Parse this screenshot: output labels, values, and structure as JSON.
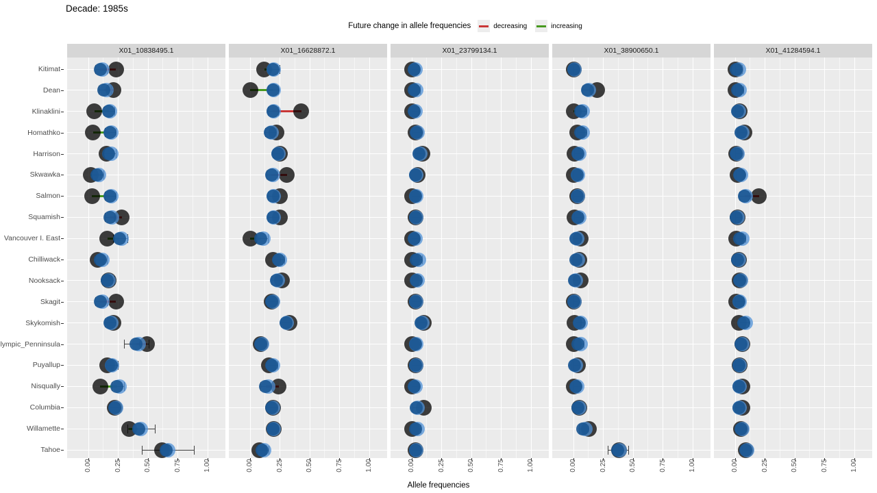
{
  "title": "Decade: 1985s",
  "chart_data": {
    "type": "scatter",
    "title": "Decade: 1985s",
    "xlabel": "Allele frequencies",
    "x_tick_labels": [
      "0.00",
      "0.25",
      "0.50",
      "0.75",
      "1.00"
    ],
    "x_tick_values": [
      0,
      0.25,
      0.5,
      0.75,
      1
    ],
    "x_minor_values": [
      0.125,
      0.375,
      0.625,
      0.875
    ],
    "xlim": [
      -0.18,
      1.15
    ],
    "legend": {
      "title": "Future change in allele frequencies",
      "entries": [
        {
          "label": "decreasing",
          "color": "#c93636",
          "code": "d"
        },
        {
          "label": "increasing",
          "color": "#47991f",
          "code": "i"
        }
      ]
    },
    "style": {
      "panel_bg": "#ebebeb",
      "strip_bg": "#d6d6d6",
      "grid": "#ffffff",
      "dark_point": "rgba(0,0,0,0.75)",
      "blue_dark_point": "rgba(25,85,145,0.9)",
      "blue_light_point": "rgba(80,145,215,0.75)",
      "errbar": "#3f3f3f"
    },
    "populations": [
      "Kitimat",
      "Dean",
      "Klinaklini",
      "Homathko",
      "Harrison",
      "Skwawka",
      "Salmon",
      "Squamish",
      "Vancouver I. East",
      "Chilliwack",
      "Nooksack",
      "Skagit",
      "Skykomish",
      "Olympic_Penninsula",
      "Puyallup",
      "Nisqually",
      "Columbia",
      "Willamette",
      "Tahoe"
    ],
    "row_format": [
      "current_dark",
      "future_blue_dark",
      "future_blue_light",
      "err_lo",
      "err_hi",
      "change (d=decreasing, i=increasing, null=none)"
    ],
    "facets": [
      {
        "label": "X01_10838495.1",
        "rows": [
          [
            0.23,
            0.1,
            0.12,
            0.06,
            0.16,
            "d"
          ],
          [
            0.21,
            0.13,
            0.15,
            0.09,
            0.19,
            "d"
          ],
          [
            0.05,
            0.17,
            0.18,
            0.13,
            0.22,
            "i"
          ],
          [
            0.04,
            0.18,
            0.19,
            0.14,
            0.23,
            "i"
          ],
          [
            0.15,
            0.17,
            0.19,
            0.13,
            0.23,
            null
          ],
          [
            0.02,
            0.07,
            0.09,
            0.03,
            0.13,
            "i"
          ],
          [
            0.03,
            0.18,
            0.19,
            0.14,
            0.23,
            "i"
          ],
          [
            0.28,
            0.18,
            0.2,
            0.14,
            0.24,
            "d"
          ],
          [
            0.16,
            0.26,
            0.28,
            0.21,
            0.33,
            "i"
          ],
          [
            0.08,
            0.1,
            0.12,
            0.06,
            0.16,
            null
          ],
          [
            0.17,
            0.16,
            0.17,
            0.12,
            0.22,
            null
          ],
          [
            0.23,
            0.1,
            0.12,
            0.06,
            0.16,
            "d"
          ],
          [
            0.21,
            0.18,
            0.19,
            0.14,
            0.23,
            null
          ],
          [
            0.49,
            0.4,
            0.42,
            0.3,
            0.51,
            "d"
          ],
          [
            0.16,
            0.19,
            0.2,
            0.15,
            0.25,
            null
          ],
          [
            0.1,
            0.24,
            0.26,
            0.2,
            0.3,
            "i"
          ],
          [
            0.22,
            0.22,
            0.23,
            0.18,
            0.27,
            null
          ],
          [
            0.34,
            0.42,
            0.44,
            0.33,
            0.56,
            "i"
          ],
          [
            0.62,
            0.65,
            0.67,
            0.45,
            0.89,
            null
          ]
        ]
      },
      {
        "label": "X01_16628872.1",
        "rows": [
          [
            0.12,
            0.19,
            0.2,
            0.15,
            0.25,
            "i"
          ],
          [
            0.0,
            0.19,
            0.2,
            0.15,
            0.24,
            "i"
          ],
          [
            0.43,
            0.19,
            0.2,
            0.15,
            0.24,
            "d"
          ],
          [
            0.22,
            0.17,
            0.18,
            0.13,
            0.22,
            null
          ],
          [
            0.25,
            0.23,
            0.24,
            0.19,
            0.28,
            null
          ],
          [
            0.31,
            0.18,
            0.19,
            0.14,
            0.23,
            "d"
          ],
          [
            0.25,
            0.19,
            0.2,
            0.15,
            0.24,
            null
          ],
          [
            0.25,
            0.19,
            0.2,
            0.15,
            0.24,
            null
          ],
          [
            0.0,
            0.09,
            0.11,
            0.05,
            0.15,
            "i"
          ],
          [
            0.19,
            0.24,
            0.25,
            0.2,
            0.29,
            null
          ],
          [
            0.27,
            0.22,
            0.23,
            0.18,
            0.27,
            null
          ],
          [
            0.18,
            0.18,
            0.19,
            0.14,
            0.23,
            null
          ],
          [
            0.33,
            0.3,
            0.31,
            0.26,
            0.35,
            null
          ],
          [
            0.09,
            0.09,
            0.1,
            0.05,
            0.14,
            null
          ],
          [
            0.16,
            0.18,
            0.19,
            0.14,
            0.23,
            null
          ],
          [
            0.24,
            0.13,
            0.15,
            0.09,
            0.19,
            "d"
          ],
          [
            0.19,
            0.18,
            0.19,
            0.14,
            0.23,
            null
          ],
          [
            0.2,
            0.19,
            0.2,
            0.15,
            0.24,
            null
          ],
          [
            0.08,
            0.1,
            0.12,
            0.06,
            0.16,
            null
          ]
        ]
      },
      {
        "label": "X01_23799134.1",
        "rows": [
          [
            0.0,
            0.02,
            0.03,
            0.0,
            0.06,
            null
          ],
          [
            0.0,
            0.02,
            0.04,
            0.0,
            0.07,
            null
          ],
          [
            0.0,
            0.02,
            0.03,
            0.0,
            0.06,
            null
          ],
          [
            0.03,
            0.04,
            0.05,
            0.01,
            0.08,
            null
          ],
          [
            0.09,
            0.06,
            0.07,
            0.03,
            0.1,
            null
          ],
          [
            0.05,
            0.03,
            0.04,
            0.0,
            0.07,
            null
          ],
          [
            0.0,
            0.03,
            0.04,
            0.0,
            0.07,
            null
          ],
          [
            0.03,
            0.03,
            0.04,
            0.0,
            0.07,
            null
          ],
          [
            0.0,
            0.02,
            0.03,
            0.0,
            0.06,
            null
          ],
          [
            0.0,
            0.04,
            0.06,
            0.01,
            0.09,
            null
          ],
          [
            0.0,
            0.04,
            0.05,
            0.01,
            0.08,
            null
          ],
          [
            0.03,
            0.03,
            0.04,
            0.0,
            0.07,
            null
          ],
          [
            0.1,
            0.08,
            0.09,
            0.05,
            0.12,
            null
          ],
          [
            0.0,
            0.03,
            0.04,
            0.0,
            0.07,
            null
          ],
          [
            0.03,
            0.03,
            0.04,
            0.0,
            0.07,
            null
          ],
          [
            0.0,
            0.02,
            0.03,
            0.0,
            0.06,
            null
          ],
          [
            0.1,
            0.04,
            0.05,
            0.01,
            0.08,
            null
          ],
          [
            0.0,
            0.03,
            0.05,
            0.0,
            0.08,
            null
          ],
          [
            0.03,
            0.03,
            0.04,
            0.0,
            0.07,
            null
          ]
        ]
      },
      {
        "label": "X01_38900650.1",
        "rows": [
          [
            0.0,
            0.0,
            0.01,
            0.0,
            0.04,
            null
          ],
          [
            0.2,
            0.12,
            0.13,
            0.08,
            0.17,
            null
          ],
          [
            0.0,
            0.06,
            0.08,
            0.03,
            0.11,
            "i"
          ],
          [
            0.03,
            0.06,
            0.08,
            0.03,
            0.11,
            null
          ],
          [
            0.01,
            0.04,
            0.05,
            0.01,
            0.08,
            null
          ],
          [
            0.0,
            0.03,
            0.04,
            0.0,
            0.07,
            null
          ],
          [
            0.03,
            0.03,
            0.04,
            0.0,
            0.07,
            null
          ],
          [
            0.01,
            0.04,
            0.05,
            0.01,
            0.08,
            null
          ],
          [
            0.06,
            0.02,
            0.03,
            0.0,
            0.06,
            null
          ],
          [
            0.05,
            0.02,
            0.04,
            0.0,
            0.07,
            null
          ],
          [
            0.06,
            0.01,
            0.02,
            0.0,
            0.05,
            null
          ],
          [
            0.0,
            0.0,
            0.01,
            0.0,
            0.04,
            null
          ],
          [
            0.01,
            0.05,
            0.06,
            0.02,
            0.09,
            null
          ],
          [
            0.0,
            0.04,
            0.06,
            0.01,
            0.09,
            null
          ],
          [
            0.04,
            0.01,
            0.02,
            0.0,
            0.05,
            null
          ],
          [
            0.0,
            0.02,
            0.03,
            0.0,
            0.06,
            null
          ],
          [
            0.05,
            0.04,
            0.05,
            0.01,
            0.08,
            null
          ],
          [
            0.13,
            0.08,
            0.1,
            0.05,
            0.13,
            null
          ],
          [
            0.38,
            0.37,
            0.39,
            0.29,
            0.46,
            null
          ]
        ]
      },
      {
        "label": "X01_41284594.1",
        "rows": [
          [
            0.0,
            0.01,
            0.03,
            0.0,
            0.06,
            null
          ],
          [
            0.0,
            0.02,
            0.04,
            0.0,
            0.07,
            null
          ],
          [
            0.04,
            0.02,
            0.03,
            0.0,
            0.06,
            null
          ],
          [
            0.08,
            0.05,
            0.06,
            0.02,
            0.09,
            null
          ],
          [
            0.01,
            0.01,
            0.02,
            0.0,
            0.05,
            null
          ],
          [
            0.02,
            0.04,
            0.05,
            0.01,
            0.08,
            null
          ],
          [
            0.2,
            0.08,
            0.09,
            0.04,
            0.13,
            "d"
          ],
          [
            0.02,
            0.01,
            0.02,
            0.0,
            0.05,
            null
          ],
          [
            0.01,
            0.04,
            0.06,
            0.01,
            0.09,
            null
          ],
          [
            0.03,
            0.02,
            0.03,
            0.0,
            0.06,
            null
          ],
          [
            0.04,
            0.04,
            0.05,
            0.01,
            0.08,
            null
          ],
          [
            0.01,
            0.03,
            0.04,
            0.0,
            0.07,
            null
          ],
          [
            0.03,
            0.07,
            0.09,
            0.04,
            0.12,
            null
          ],
          [
            0.06,
            0.05,
            0.06,
            0.02,
            0.09,
            null
          ],
          [
            0.04,
            0.03,
            0.04,
            0.0,
            0.07,
            null
          ],
          [
            0.06,
            0.03,
            0.04,
            0.0,
            0.07,
            null
          ],
          [
            0.06,
            0.03,
            0.04,
            0.0,
            0.07,
            null
          ],
          [
            0.05,
            0.05,
            0.06,
            0.02,
            0.09,
            null
          ],
          [
            0.09,
            0.09,
            0.1,
            0.06,
            0.13,
            null
          ]
        ]
      }
    ]
  }
}
